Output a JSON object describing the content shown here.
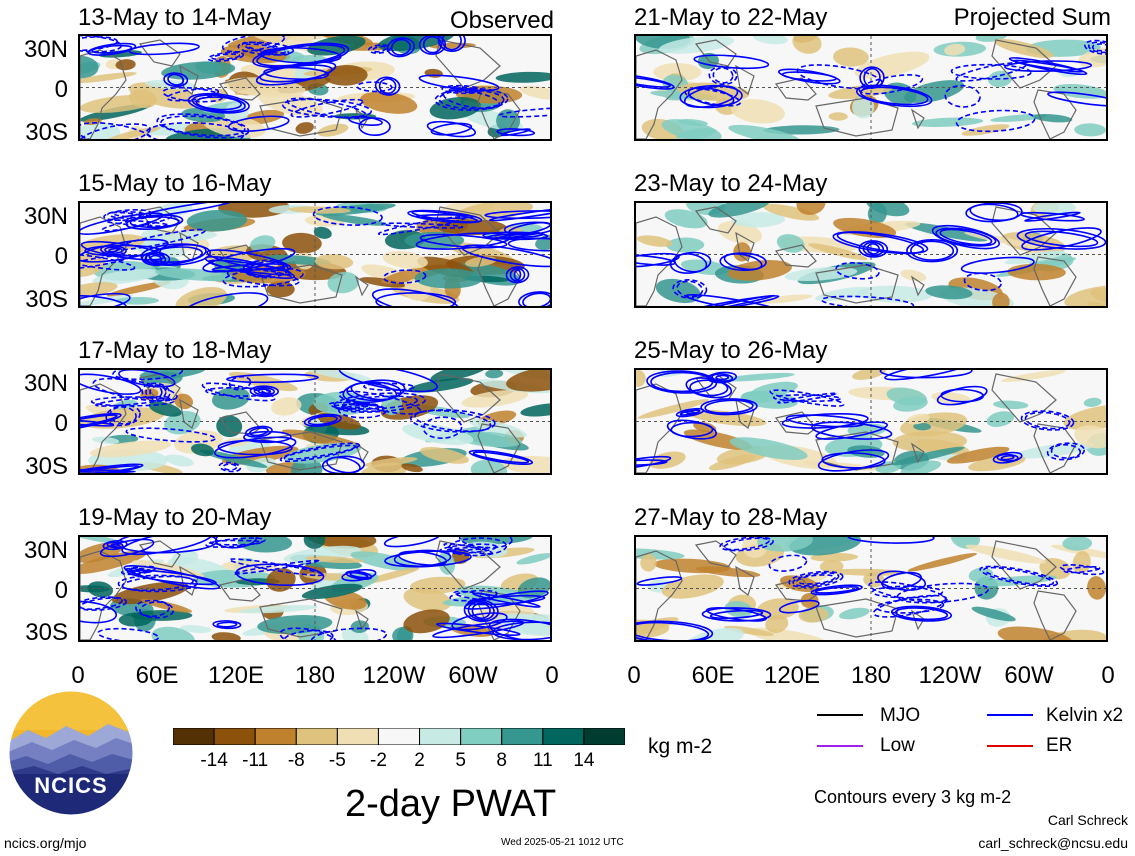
{
  "left_column_tag": "Observed",
  "right_column_tag": "Projected Sum",
  "panels_left": [
    {
      "title": "13-May to 14-May"
    },
    {
      "title": "15-May to 16-May"
    },
    {
      "title": "17-May to 18-May"
    },
    {
      "title": "19-May to 20-May"
    }
  ],
  "panels_right": [
    {
      "title": "21-May to 22-May"
    },
    {
      "title": "23-May to 24-May"
    },
    {
      "title": "25-May to 26-May"
    },
    {
      "title": "27-May to 28-May"
    }
  ],
  "lat_labels": [
    "30N",
    "0",
    "30S"
  ],
  "lon_labels": [
    "0",
    "60E",
    "120E",
    "180",
    "120W",
    "60W",
    "0"
  ],
  "colorbar": {
    "tick_labels": [
      "-14",
      "-11",
      "-8",
      "-5",
      "-2",
      "2",
      "5",
      "8",
      "11",
      "14"
    ],
    "colors": [
      "#543005",
      "#8c510a",
      "#bf812d",
      "#dfc27d",
      "#f0dfb4",
      "#f7f7f7",
      "#c7eae5",
      "#80cdc1",
      "#35978f",
      "#01665e",
      "#003c30"
    ],
    "units": "kg m-2"
  },
  "title": "2-day PWAT",
  "legend": {
    "items": [
      {
        "label": "MJO",
        "color": "#000000"
      },
      {
        "label": "Kelvin x2",
        "color": "#0000ff"
      },
      {
        "label": "Low",
        "color": "#a020f0"
      },
      {
        "label": "ER",
        "color": "#e00000"
      }
    ],
    "contour_note": "Contours every 3 kg m-2"
  },
  "logo": {
    "text": "NCICS"
  },
  "footer": {
    "url": "ncics.org/mjo",
    "timestamp": "Wed 2025-05-21 1012 UTC",
    "author": "Carl Schreck",
    "email": "carl_schreck@ncsu.edu"
  }
}
